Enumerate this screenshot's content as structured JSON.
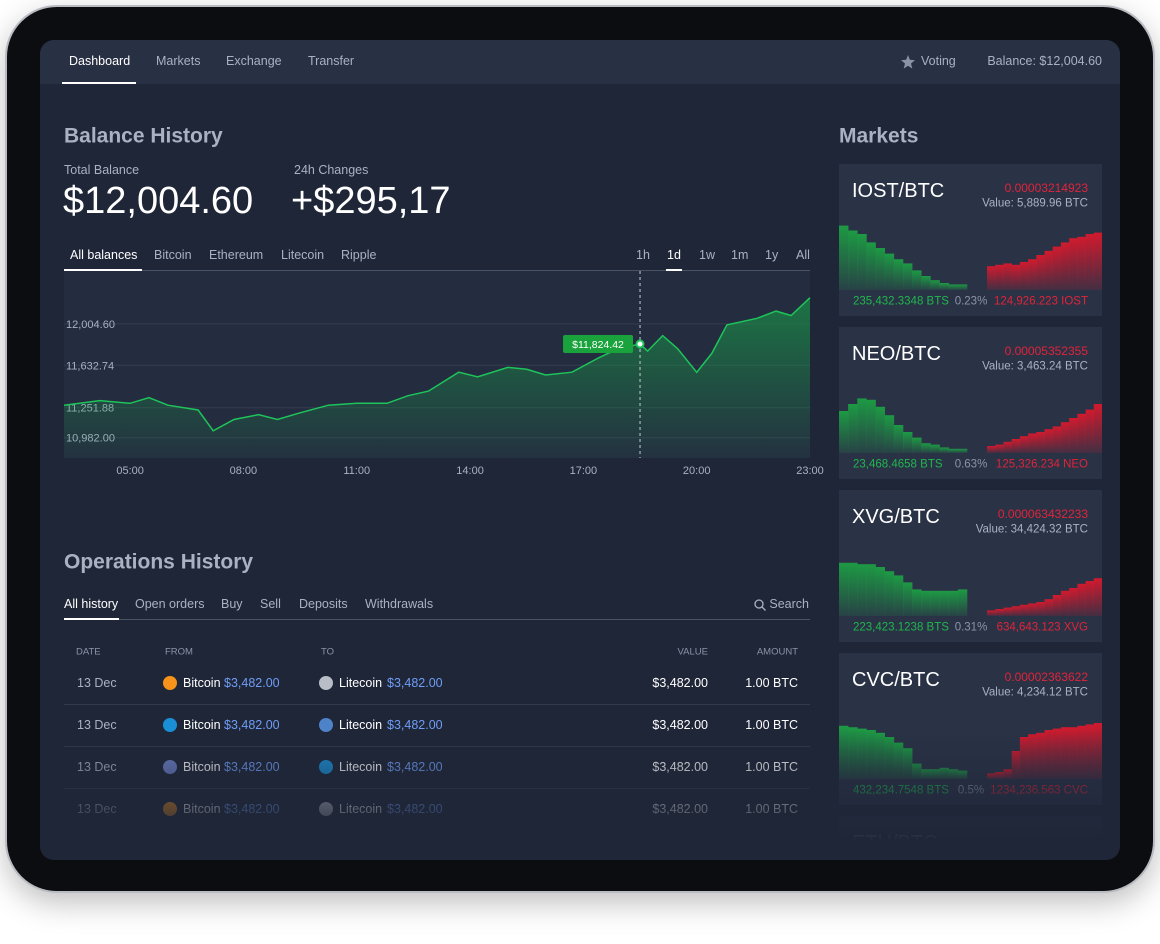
{
  "nav": {
    "items": [
      "Dashboard",
      "Markets",
      "Exchange",
      "Transfer"
    ],
    "voting": "Voting",
    "balance": "Balance: $12,004.60"
  },
  "balance_history": {
    "title": "Balance History",
    "total_label": "Total Balance",
    "total": "$12,004.60",
    "change_label": "24h Changes",
    "change": "+$295,17",
    "tabs": [
      "All balances",
      "Bitcoin",
      "Ethereum",
      "Litecoin",
      "Ripple"
    ],
    "ranges": [
      "1h",
      "1d",
      "1w",
      "1m",
      "1y",
      "All"
    ],
    "chart": {
      "type": "line",
      "color": "#1ec45a",
      "x": [
        3.25,
        4.2,
        5,
        5.5,
        6,
        6.8,
        7.2,
        7.75,
        8.4,
        8.9,
        9.5,
        10.25,
        11,
        11.8,
        12.35,
        12.9,
        13.7,
        14.2,
        15,
        15.5,
        16,
        16.7,
        17.4,
        17.9,
        18.5,
        18.7,
        19.1,
        19.5,
        20,
        20.4,
        20.8,
        21.6,
        22.1,
        22.5,
        23
      ],
      "values": [
        11274,
        11316,
        11291,
        11342,
        11274,
        11231,
        11044,
        11146,
        11189,
        11146,
        11206,
        11274,
        11291,
        11291,
        11359,
        11401,
        11571,
        11529,
        11614,
        11597,
        11546,
        11571,
        11699,
        11780,
        11824.42,
        11760,
        11900,
        11780,
        11570,
        11740,
        11996,
        12055,
        12120,
        12080,
        12240
      ],
      "xlim": [
        3.25,
        23
      ],
      "ylim": [
        10800,
        12480
      ],
      "xticks": [
        {
          "value": 5,
          "label": "05:00"
        },
        {
          "value": 8,
          "label": "08:00"
        },
        {
          "value": 11,
          "label": "11:00"
        },
        {
          "value": 14,
          "label": "14:00"
        },
        {
          "value": 17,
          "label": "17:00"
        },
        {
          "value": 20,
          "label": "20:00"
        },
        {
          "value": 23,
          "label": "23:00"
        }
      ],
      "yticks": [
        {
          "value": 10982,
          "label": "10,982.00"
        },
        {
          "value": 11251.88,
          "label": "11,251.88"
        },
        {
          "value": 11632.74,
          "label": "11,632.74"
        },
        {
          "value": 12004.6,
          "label": "12,004.60"
        }
      ],
      "grid": true,
      "highlight": {
        "x": 18.5,
        "value": 11824.42,
        "label": "$11,824.42"
      }
    }
  },
  "markets": {
    "title": "Markets",
    "cards": [
      {
        "pair": "IOST/BTC",
        "price": "0.00003214923",
        "value": "Value: 5,889.96 BTC",
        "buy": "235,432.3348 BTS",
        "change": "0.23%",
        "sell": "124,926.223 IOST",
        "bids": [
          92,
          85,
          80,
          68,
          60,
          52,
          44,
          38,
          28,
          20,
          14,
          10,
          8,
          8
        ],
        "asks": [
          34,
          36,
          38,
          36,
          40,
          44,
          50,
          56,
          62,
          68,
          74,
          76,
          80,
          82
        ]
      },
      {
        "pair": "NEO/BTC",
        "price": "0.00005352355",
        "value": "Value: 3,463.24 BTC",
        "buy": "23,468.4658 BTS",
        "change": "0.63%",
        "sell": "125,326.234 NEO",
        "bids": [
          60,
          70,
          78,
          76,
          66,
          54,
          40,
          30,
          22,
          14,
          12,
          8,
          6,
          6
        ],
        "asks": [
          10,
          12,
          16,
          20,
          24,
          28,
          30,
          34,
          38,
          44,
          50,
          56,
          62,
          70
        ]
      },
      {
        "pair": "XVG/BTC",
        "price": "0.000063432233",
        "value": "Value: 34,424.32 BTC",
        "buy": "223,423.1238 BTS",
        "change": "0.31%",
        "sell": "634,643.123 XVG",
        "bids": [
          76,
          76,
          74,
          74,
          70,
          64,
          58,
          48,
          38,
          36,
          36,
          36,
          36,
          38
        ],
        "asks": [
          8,
          10,
          12,
          14,
          16,
          18,
          20,
          24,
          30,
          36,
          40,
          46,
          50,
          54
        ]
      },
      {
        "pair": "CVC/BTC",
        "price": "0.00002363622",
        "value": "Value: 4,234.12 BTC",
        "buy": "432,234.7548 BTS",
        "change": "0.5%",
        "sell": "1234,236.563 CVC",
        "bids": [
          76,
          74,
          72,
          70,
          66,
          60,
          52,
          44,
          22,
          14,
          14,
          16,
          14,
          12
        ],
        "asks": [
          8,
          10,
          14,
          40,
          60,
          64,
          66,
          70,
          72,
          74,
          74,
          76,
          78,
          80
        ]
      },
      {
        "pair": "ETH/BTC"
      }
    ]
  },
  "operations": {
    "title": "Operations History",
    "tabs": [
      "All history",
      "Open orders",
      "Buy",
      "Sell",
      "Deposits",
      "Withdrawals"
    ],
    "search": "Search",
    "columns": [
      "DATE",
      "FROM",
      "TO",
      "VALUE",
      "AMOUNT"
    ],
    "rows": [
      {
        "date": "13 Dec",
        "from": "Bitcoin",
        "from_value": "$3,482.00",
        "to": "Litecoin",
        "to_value": "$3,482.00",
        "value": "$3,482.00",
        "amount": "1.00 BTC"
      },
      {
        "date": "13 Dec",
        "from": "Bitcoin",
        "from_value": "$3,482.00",
        "to": "Litecoin",
        "to_value": "$3,482.00",
        "value": "$3,482.00",
        "amount": "1.00 BTC"
      },
      {
        "date": "13 Dec",
        "from": "Bitcoin",
        "from_value": "$3,482.00",
        "to": "Litecoin",
        "to_value": "$3,482.00",
        "value": "$3,482.00",
        "amount": "1.00 BTC"
      },
      {
        "date": "13 Dec",
        "from": "Bitcoin",
        "from_value": "$3,482.00",
        "to": "Litecoin",
        "to_value": "$3,482.00",
        "value": "$3,482.00",
        "amount": "1.00 BTC"
      }
    ]
  }
}
